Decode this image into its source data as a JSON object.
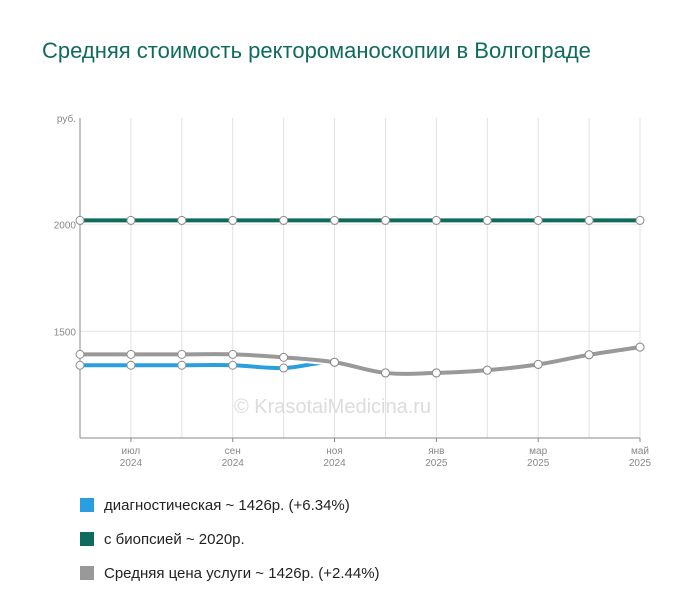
{
  "chart_data": {
    "type": "line",
    "title": "Средняя стоимость ректороманоскопии в Волгограде",
    "ylabel": "руб.",
    "ylim": [
      1000,
      2500
    ],
    "yticks": [
      1500,
      2000
    ],
    "grid": true,
    "x": [
      "2024-06",
      "2024-07",
      "2024-08",
      "2024-09",
      "2024-10",
      "2024-11",
      "2024-12",
      "2025-01",
      "2025-02",
      "2025-03",
      "2025-04",
      "2025-05"
    ],
    "xtick_labels": [
      {
        "index": 1,
        "month": "июл",
        "year": "2024"
      },
      {
        "index": 3,
        "month": "сен",
        "year": "2024"
      },
      {
        "index": 5,
        "month": "ноя",
        "year": "2024"
      },
      {
        "index": 7,
        "month": "янв",
        "year": "2025"
      },
      {
        "index": 9,
        "month": "мар",
        "year": "2025"
      },
      {
        "index": 11,
        "month": "май",
        "year": "2025"
      }
    ],
    "series": [
      {
        "name": "диагностическая",
        "color": "#2a9fdf",
        "values": [
          1341,
          1341,
          1341,
          1341,
          1328,
          1355,
          1305,
          1305,
          1318,
          1345,
          1390,
          1426
        ]
      },
      {
        "name": "с биопсией",
        "color": "#0f6b5d",
        "values": [
          2020,
          2020,
          2020,
          2020,
          2020,
          2020,
          2020,
          2020,
          2020,
          2020,
          2020,
          2020
        ]
      },
      {
        "name": "Средняя цена услуги",
        "color": "#999999",
        "values": [
          1392,
          1392,
          1392,
          1392,
          1378,
          1355,
          1305,
          1305,
          1318,
          1345,
          1390,
          1426
        ]
      }
    ],
    "legend_position": "bottom"
  },
  "legend": [
    {
      "label": "диагностическая ~ 1426р. (+6.34%)",
      "color": "#2a9fdf"
    },
    {
      "label": "с биопсией ~ 2020р.",
      "color": "#0f6b5d"
    },
    {
      "label": "Средняя цена услуги ~ 1426р. (+2.44%)",
      "color": "#999999"
    }
  ],
  "watermark": "© KrasotaiMedicina.ru"
}
